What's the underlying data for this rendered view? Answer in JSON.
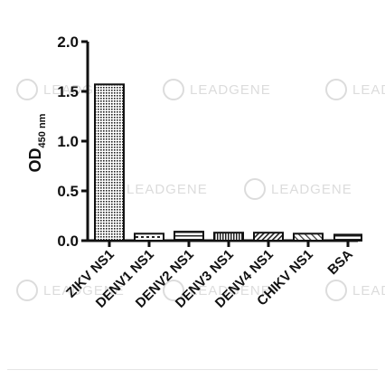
{
  "chart_data": {
    "type": "bar",
    "title": "",
    "ylabel_main": "OD",
    "ylabel_sub": "450 nm",
    "xlabel": "",
    "categories": [
      "ZIKV NS1",
      "DENV1 NS1",
      "DENV2 NS1",
      "DENV3 NS1",
      "DENV4 NS1",
      "CHIKV NS1",
      "BSA"
    ],
    "values": [
      1.57,
      0.07,
      0.09,
      0.08,
      0.08,
      0.07,
      0.06
    ],
    "ylim": [
      0,
      2.0
    ],
    "yticks": [
      "0.0",
      "0.5",
      "1.0",
      "1.5",
      "2.0"
    ],
    "ytick_values": [
      0,
      0.5,
      1.0,
      1.5,
      2.0
    ],
    "bar_patterns": [
      "dots",
      "dashes",
      "horizontal",
      "vertical",
      "diagonal",
      "diagonal-light",
      "horizontal"
    ],
    "grid": false,
    "legend": "none"
  },
  "watermark": {
    "text": "LEADGENE"
  },
  "colors": {
    "axis": "#111111",
    "bar_edge": "#111111",
    "watermark": "#dcdcdc"
  }
}
